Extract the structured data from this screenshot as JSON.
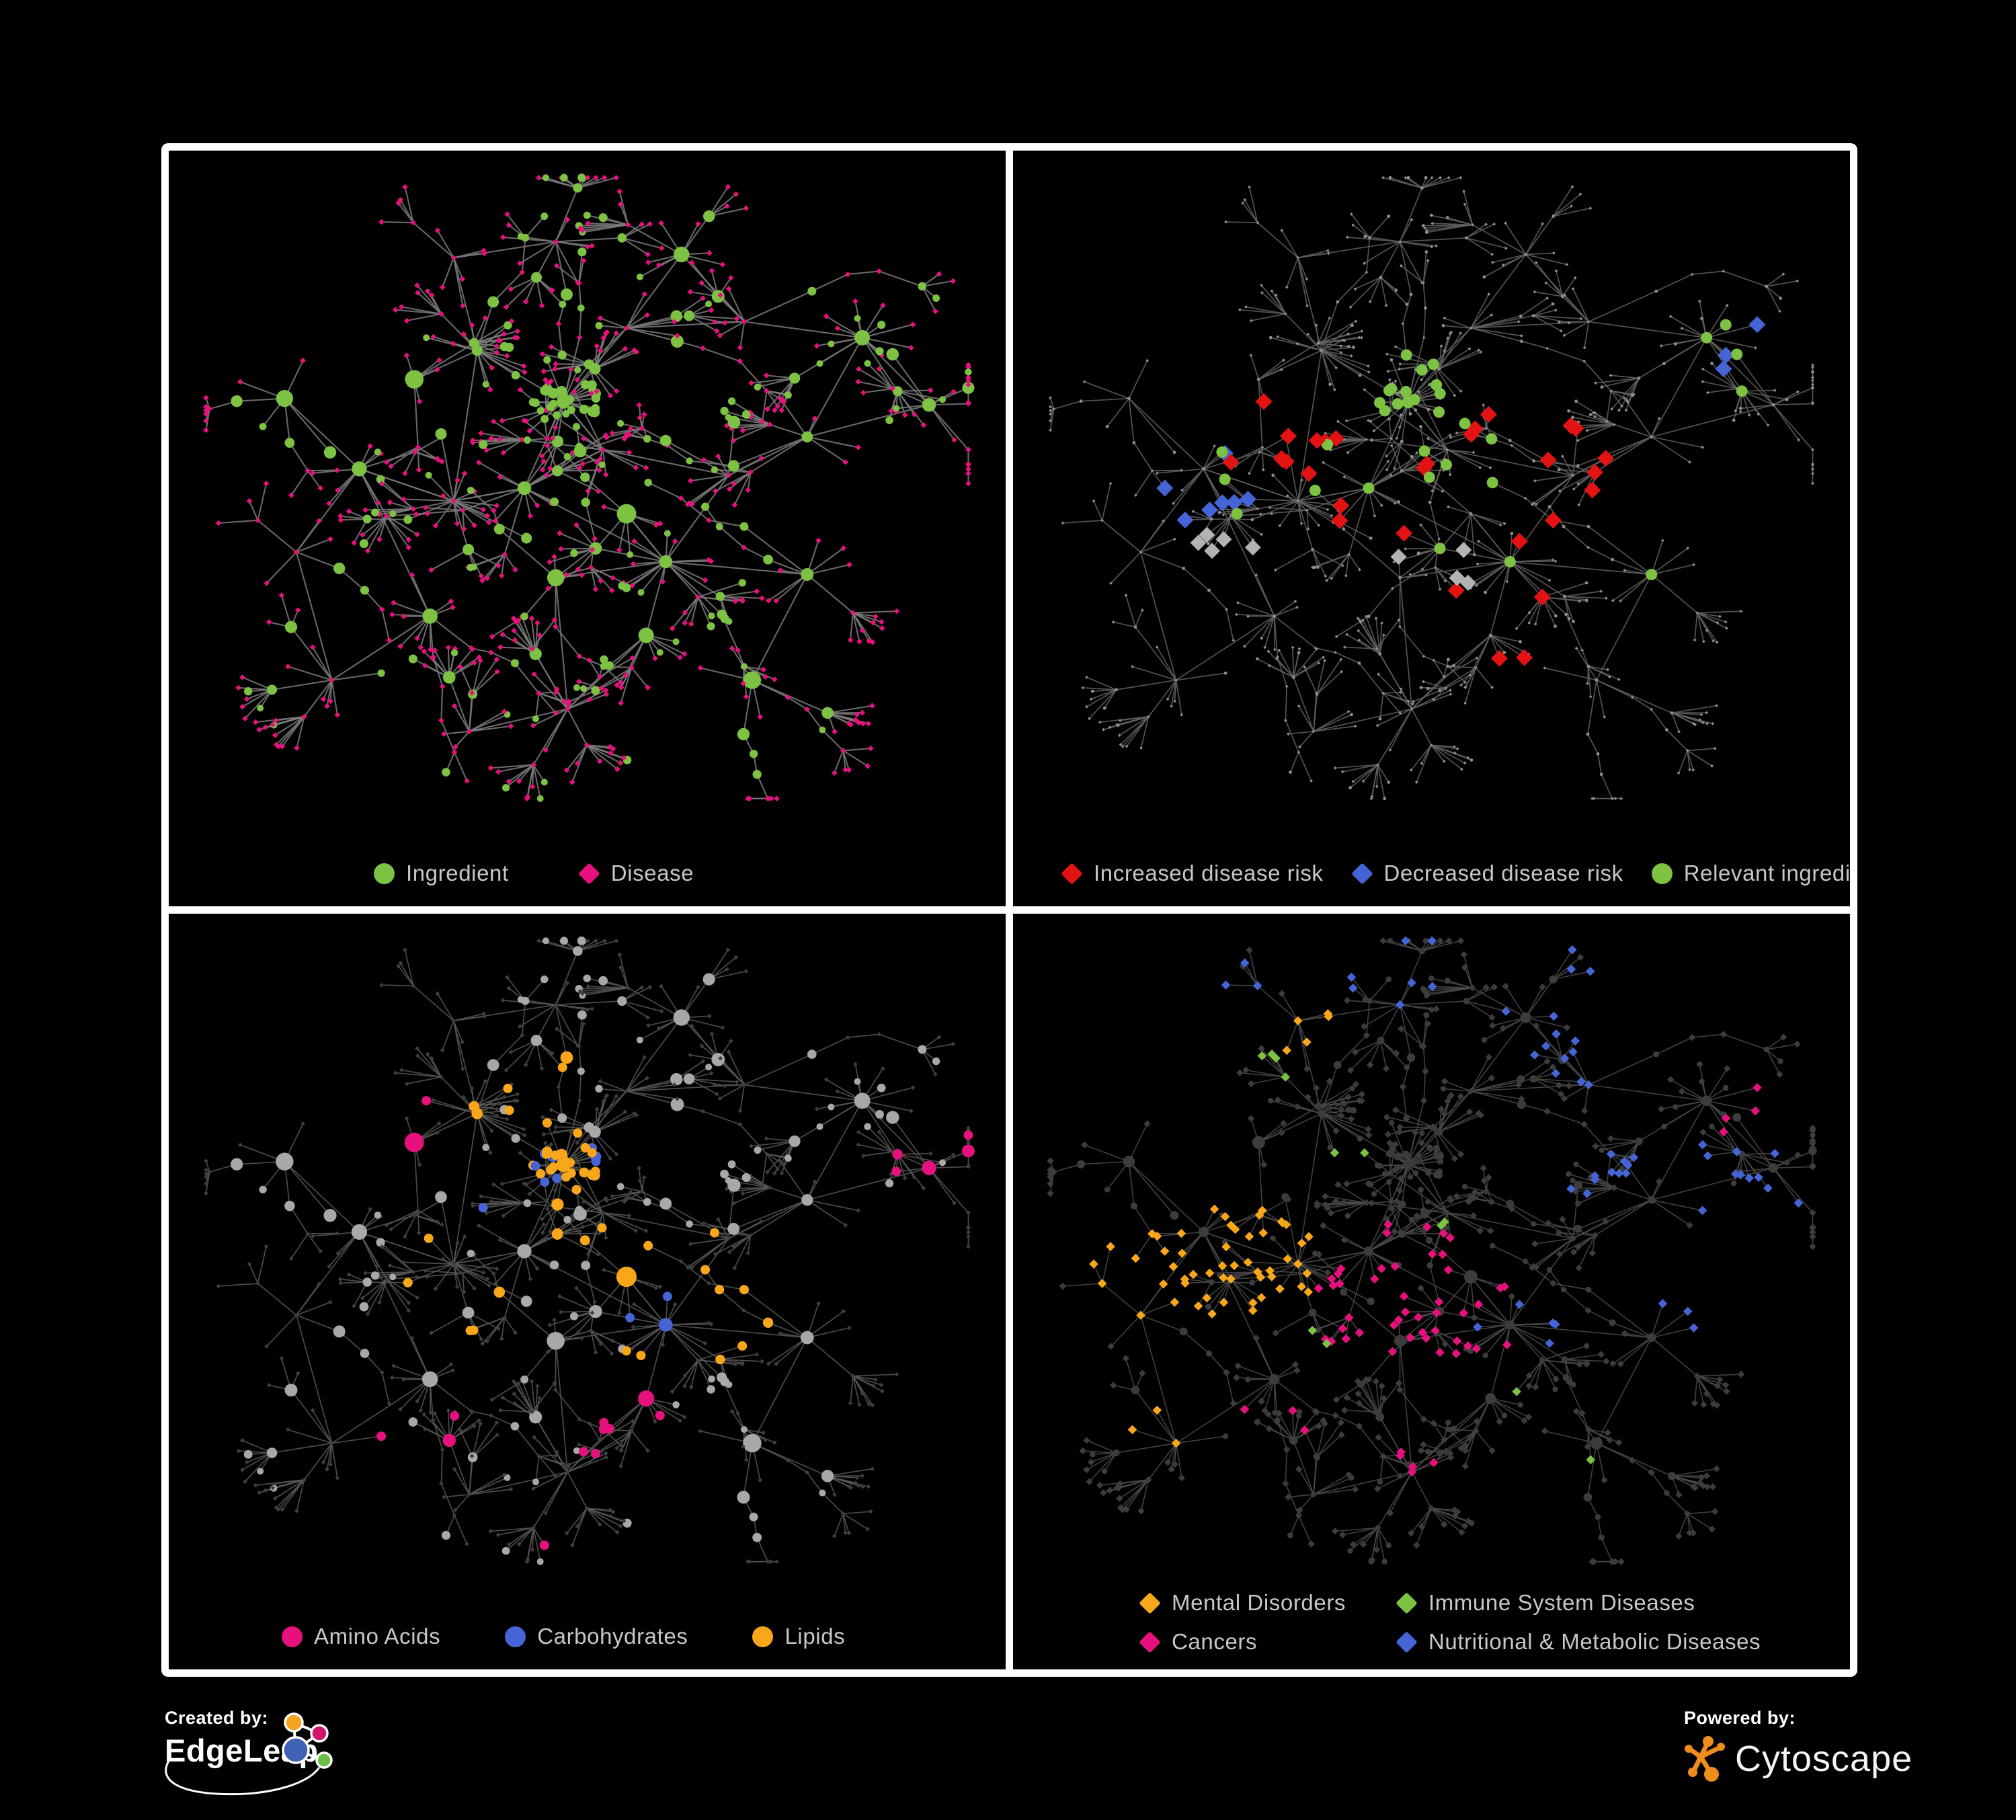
{
  "figure": {
    "type": "network-figure",
    "background": "#000000",
    "description": "Four panel views of the same ingredient-disease association network",
    "panels": [
      {
        "id": "ingredient-disease",
        "position": "top-left",
        "legend": [
          {
            "shape": "circle",
            "color": "#7DC242",
            "label": "Ingredient"
          },
          {
            "shape": "diamond",
            "color": "#E6117D",
            "label": "Disease"
          }
        ]
      },
      {
        "id": "disease-risk",
        "position": "top-right",
        "legend": [
          {
            "shape": "diamond",
            "color": "#E31313",
            "label": "Increased disease risk"
          },
          {
            "shape": "diamond",
            "color": "#4565D6",
            "label": "Decreased disease risk"
          },
          {
            "shape": "circle",
            "color": "#7DC242",
            "label": "Relevant ingredient"
          }
        ]
      },
      {
        "id": "nutrient-classes",
        "position": "bottom-left",
        "legend": [
          {
            "shape": "circle",
            "color": "#E6117D",
            "label": "Amino Acids"
          },
          {
            "shape": "circle",
            "color": "#4565D6",
            "label": "Carbohydrates"
          },
          {
            "shape": "circle",
            "color": "#F8A71B",
            "label": "Lipids"
          }
        ]
      },
      {
        "id": "disease-categories",
        "position": "bottom-right",
        "legend": [
          {
            "shape": "diamond",
            "color": "#F8A71B",
            "label": "Mental Disorders"
          },
          {
            "shape": "diamond",
            "color": "#7DC242",
            "label": "Immune System Diseases"
          },
          {
            "shape": "diamond",
            "color": "#E6117D",
            "label": "Cancers"
          },
          {
            "shape": "diamond",
            "color": "#4565D6",
            "label": "Nutritional & Metabolic Diseases"
          }
        ]
      }
    ]
  },
  "branding": {
    "created_by_label": "Created by:",
    "created_by_name": "EdgeLeap",
    "powered_by_label": "Powered by:",
    "powered_by_name": "Cytoscape"
  },
  "colors": {
    "frame_border": "#FFFFFF",
    "green": "#7DC242",
    "pink": "#E6117D",
    "red": "#E31313",
    "blue": "#4565D6",
    "orange": "#F8A71B",
    "highlight_gray": "#B3B3B3",
    "base_node_gray": "#8F8F8F",
    "light_node_gray": "#A8A8A8",
    "dark_node_gray": "#3C3C3C",
    "edge_panel_1": "#7B7B7B",
    "edge_panel_2": "#616161",
    "edge_panel_3": "#585858",
    "edge_panel_4": "#4B4B4B",
    "legend_text": "#C7C7C7",
    "cytoscape_orange": "#EE8C1E",
    "edgeleap_blue": "#3F62B5",
    "edgeleap_orange": "#F5A51D",
    "edgeleap_magenta": "#D4146A",
    "edgeleap_green": "#6CBE45"
  }
}
